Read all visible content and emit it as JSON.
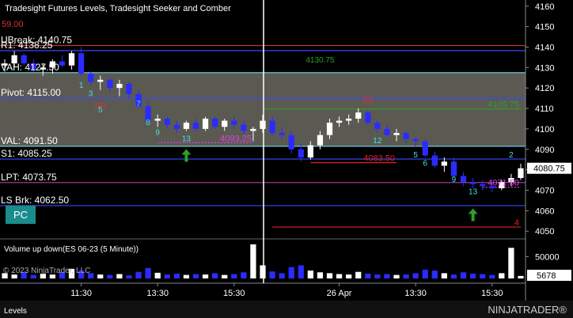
{
  "ui": {
    "window_title": "Tradesight Futures Levels, Tradesight Seeker and Comber",
    "top_note": "59.00",
    "button": "PC",
    "copyright": "© 2023 NinjaTrader, LLC",
    "tab": "Levels",
    "logo": "NINJATRADER®"
  },
  "chart_data": [
    {
      "type": "candlestick",
      "up_color": "#ffffff",
      "down_color": "#2b2bff",
      "open": [
        4131,
        4132,
        4136,
        4132,
        4129,
        4130,
        4133,
        4131,
        4137,
        4127,
        4123,
        4124,
        4120,
        4122,
        4117,
        4111,
        4104,
        4105,
        4102,
        4100,
        4103,
        4100,
        4105,
        4101,
        4104,
        4102,
        4099,
        4100,
        4104,
        4098,
        4097,
        4090,
        4086,
        4092,
        4097,
        4103,
        4104,
        4105,
        4108,
        4103,
        4100,
        4097,
        4098,
        4095,
        4094,
        4087,
        4082,
        4084,
        4077,
        4074,
        4073,
        4072,
        4071,
        4074,
        4076
      ],
      "high": [
        4134,
        4138,
        4137,
        4134,
        4132,
        4134,
        4136,
        4138,
        4140,
        4128,
        4126,
        4125,
        4124,
        4123,
        4119,
        4113,
        4107,
        4106,
        4104,
        4104,
        4105,
        4106,
        4106,
        4105,
        4106,
        4104,
        4101,
        4107,
        4106,
        4101,
        4099,
        4093,
        4094,
        4099,
        4105,
        4106,
        4107,
        4110,
        4109,
        4104,
        4102,
        4100,
        4099,
        4096,
        4095,
        4089,
        4086,
        4086,
        4079,
        4076,
        4075,
        4074,
        4075,
        4078,
        4083
      ],
      "low": [
        4128,
        4130,
        4131,
        4128,
        4126,
        4127,
        4130,
        4129,
        4126,
        4121,
        4119,
        4118,
        4116,
        4115,
        4110,
        4103,
        4101,
        4100,
        4098,
        4099,
        4099,
        4099,
        4100,
        4099,
        4100,
        4097,
        4094,
        4098,
        4097,
        4095,
        4088,
        4084,
        4085,
        4090,
        4095,
        4101,
        4102,
        4103,
        4102,
        4098,
        4096,
        4094,
        4093,
        4091,
        4086,
        4081,
        4079,
        4076,
        4072,
        4071,
        4070,
        4069,
        4070,
        4072,
        4075
      ],
      "close": [
        4132,
        4136,
        4132,
        4129,
        4130,
        4133,
        4131,
        4137,
        4127,
        4123,
        4124,
        4120,
        4122,
        4117,
        4111,
        4104,
        4105,
        4102,
        4100,
        4103,
        4100,
        4105,
        4101,
        4104,
        4102,
        4099,
        4100,
        4104,
        4098,
        4097,
        4090,
        4086,
        4092,
        4097,
        4103,
        4104,
        4105,
        4108,
        4103,
        4100,
        4097,
        4098,
        4095,
        4094,
        4087,
        4082,
        4084,
        4077,
        4074,
        4073,
        4072,
        4071,
        4074,
        4076,
        4080.75
      ],
      "xlim": [
        -0.5,
        54.5
      ],
      "ylim": [
        4047,
        4163
      ],
      "yticks": [
        4050,
        4060,
        4070,
        4080,
        4090,
        4100,
        4110,
        4120,
        4130,
        4140,
        4150,
        4160
      ],
      "levels": [
        {
          "label": "UBreak: 4140.75",
          "value": 4140.75,
          "color": "#d03030"
        },
        {
          "label": "R1: 4138.25",
          "value": 4138.25,
          "color": "#3a48ff"
        },
        {
          "label": "VAH: 4127.50",
          "value": 4127.5,
          "color": "#70d8e8",
          "fill": "#5b5a52"
        },
        {
          "label": "Pivot: 4115.00",
          "value": 4115,
          "color": "#3a48ff"
        },
        {
          "label": "VAL: 4091.50",
          "value": 4091.5,
          "color": "#70d8e8",
          "fill": "#5b5a52"
        },
        {
          "label": "S1: 4085.25",
          "value": 4085.25,
          "color": "#3a48ff"
        },
        {
          "label": "LPT: 4073.75",
          "value": 4073.75,
          "color": "#b040b0"
        },
        {
          "label": "LS Brk: 4062.50",
          "value": 4062.5,
          "color": "#3a48ff"
        }
      ],
      "segments": [
        {
          "label": "4109.75",
          "value": 4109.75,
          "from": 27,
          "to": 54,
          "color": "#2e9e2e"
        },
        {
          "label": "4083.50",
          "value": 4083.5,
          "from": 32,
          "to": 41,
          "color": "#e02020"
        },
        {
          "label": "4093.25",
          "value": 4093.25,
          "from": 16,
          "to": 26,
          "color": "#e040e0",
          "dash": true
        },
        {
          "label": "4071.50",
          "value": 4071.5,
          "from": 50,
          "to": 54,
          "color": "#e040e0",
          "dash": true
        },
        {
          "label": "4",
          "value": 4052,
          "from": 28,
          "to": 54,
          "color": "#e02020"
        }
      ],
      "annotations": [
        {
          "text": "4130.75",
          "bar": 33,
          "price": 4132.5,
          "color": "#2e9e2e"
        },
        {
          "text": "(R)",
          "bar": 38,
          "price": 4113,
          "color": "#e03030"
        },
        {
          "text": "(R)",
          "bar": 10,
          "price": 4110,
          "color": "#e03030"
        },
        {
          "text": "1",
          "bar": 8,
          "price": 4120,
          "color": "#40e0e0"
        },
        {
          "text": "3",
          "bar": 9,
          "price": 4116,
          "color": "#40e0e0"
        },
        {
          "text": "5",
          "bar": 10,
          "price": 4108,
          "color": "#40e0e0"
        },
        {
          "text": "7",
          "bar": 14,
          "price": 4111,
          "color": "#40e0e0"
        },
        {
          "text": "8",
          "bar": 15,
          "price": 4102,
          "color": "#40e0e0"
        },
        {
          "text": "9",
          "bar": 16,
          "price": 4097,
          "color": "#40e0e0"
        },
        {
          "text": "13",
          "bar": 19,
          "price": 4094,
          "color": "#40e0e0"
        },
        {
          "text": "12",
          "bar": 39,
          "price": 4093,
          "color": "#40e0e0"
        },
        {
          "text": "5",
          "bar": 43,
          "price": 4086,
          "color": "#40e0e0"
        },
        {
          "text": "6",
          "bar": 44,
          "price": 4082,
          "color": "#40e0e0"
        },
        {
          "text": "9",
          "bar": 47,
          "price": 4074,
          "color": "#40e0e0"
        },
        {
          "text": "13",
          "bar": 49,
          "price": 4068,
          "color": "#40e0e0"
        },
        {
          "text": "2",
          "bar": 53,
          "price": 4086,
          "color": "#40e0e0"
        }
      ],
      "arrows": [
        {
          "bar": 19,
          "price": 4087
        },
        {
          "bar": 49,
          "price": 4058
        }
      ],
      "arrow_color": "#2e9e2e"
    },
    {
      "type": "bar",
      "title": "Volume up down(ES 06-23 (5 Minute))",
      "values": [
        12000,
        9000,
        15000,
        8000,
        11000,
        9000,
        14000,
        22000,
        18000,
        12000,
        9000,
        8000,
        10000,
        7000,
        15000,
        24000,
        13000,
        9000,
        11000,
        8000,
        10000,
        9000,
        12000,
        8000,
        10000,
        14000,
        78000,
        30000,
        16000,
        12000,
        26000,
        30000,
        18000,
        14000,
        12000,
        10000,
        9000,
        15000,
        11000,
        9000,
        10000,
        8000,
        9000,
        12000,
        20000,
        18000,
        12000,
        9000,
        14000,
        11000,
        10000,
        8000,
        12000,
        70000,
        5678
      ],
      "ylim": [
        0,
        85000
      ],
      "yticks": [
        50000
      ],
      "xticks": [
        {
          "value": 8,
          "label": "11:30"
        },
        {
          "value": 16,
          "label": "13:30"
        },
        {
          "value": 24,
          "label": "15:30"
        },
        {
          "value": 35,
          "label": "26 Apr"
        },
        {
          "value": 43,
          "label": "13:30"
        },
        {
          "value": 51,
          "label": "15:30"
        }
      ]
    }
  ]
}
